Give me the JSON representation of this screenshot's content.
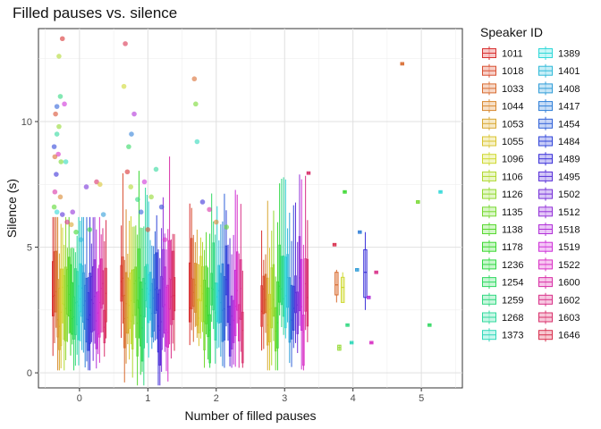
{
  "chart_data": {
    "type": "boxplot",
    "title": "Filled pauses vs. silence",
    "xlabel": "Number of filled pauses",
    "ylabel": "Silence (s)",
    "x_ticks": [
      0,
      1,
      2,
      3,
      4,
      5
    ],
    "y_ticks": [
      0,
      5,
      10
    ],
    "xlim": [
      -0.6,
      5.6
    ],
    "ylim": [
      -0.6,
      13.7
    ],
    "grid": true,
    "legend": {
      "title": "Speaker ID",
      "placement": "right",
      "entries": [
        "1011",
        "1018",
        "1033",
        "1044",
        "1053",
        "1055",
        "1096",
        "1106",
        "1126",
        "1135",
        "1138",
        "1178",
        "1236",
        "1254",
        "1259",
        "1268",
        "1373",
        "1389",
        "1401",
        "1408",
        "1417",
        "1454",
        "1484",
        "1489",
        "1495",
        "1502",
        "1512",
        "1518",
        "1519",
        "1522",
        "1600",
        "1602",
        "1603",
        "1646"
      ]
    },
    "sparse_groups": [
      {
        "x": 3.35,
        "median": 7.95,
        "q1": 7.9,
        "q3": 8.0,
        "lo": 7.9,
        "hi": 8.0,
        "speaker_index": 32
      },
      {
        "x": 3.73,
        "median": 5.1,
        "q1": 5.05,
        "q3": 5.15,
        "lo": 5.05,
        "hi": 5.15,
        "speaker_index": 33
      },
      {
        "x": 3.76,
        "median": 3.5,
        "q1": 3.1,
        "q3": 4.0,
        "lo": 2.8,
        "hi": 4.1,
        "speaker_index": 2
      },
      {
        "x": 3.8,
        "median": 1.0,
        "q1": 0.9,
        "q3": 1.1,
        "lo": 0.9,
        "hi": 1.1,
        "speaker_index": 8
      },
      {
        "x": 3.85,
        "median": 3.4,
        "q1": 2.8,
        "q3": 3.8,
        "lo": 2.8,
        "hi": 4.0,
        "speaker_index": 6
      },
      {
        "x": 3.88,
        "median": 7.2,
        "q1": 7.15,
        "q3": 7.25,
        "lo": 7.15,
        "hi": 7.25,
        "speaker_index": 11
      },
      {
        "x": 3.92,
        "median": 1.9,
        "q1": 1.85,
        "q3": 1.95,
        "lo": 1.85,
        "hi": 1.95,
        "speaker_index": 14
      },
      {
        "x": 3.98,
        "median": 1.2,
        "q1": 1.15,
        "q3": 1.25,
        "lo": 1.15,
        "hi": 1.25,
        "speaker_index": 16
      },
      {
        "x": 4.06,
        "median": 4.1,
        "q1": 4.05,
        "q3": 4.15,
        "lo": 4.05,
        "hi": 4.15,
        "speaker_index": 19
      },
      {
        "x": 4.1,
        "median": 5.6,
        "q1": 5.55,
        "q3": 5.65,
        "lo": 5.55,
        "hi": 5.65,
        "speaker_index": 20
      },
      {
        "x": 4.18,
        "median": 4.0,
        "q1": 3.0,
        "q3": 4.9,
        "lo": 2.5,
        "hi": 5.6,
        "speaker_index": 23
      },
      {
        "x": 4.23,
        "median": 3.0,
        "q1": 2.95,
        "q3": 3.05,
        "lo": 2.95,
        "hi": 3.05,
        "speaker_index": 27
      },
      {
        "x": 4.27,
        "median": 1.2,
        "q1": 1.15,
        "q3": 1.25,
        "lo": 1.15,
        "hi": 1.25,
        "speaker_index": 29
      },
      {
        "x": 4.34,
        "median": 4.0,
        "q1": 3.95,
        "q3": 4.05,
        "lo": 3.95,
        "hi": 4.05,
        "speaker_index": 31
      },
      {
        "x": 4.72,
        "median": 12.3,
        "q1": 12.25,
        "q3": 12.35,
        "lo": 12.25,
        "hi": 12.35,
        "speaker_index": 2
      },
      {
        "x": 4.95,
        "median": 6.8,
        "q1": 6.75,
        "q3": 6.85,
        "lo": 6.75,
        "hi": 6.85,
        "speaker_index": 9
      },
      {
        "x": 5.12,
        "median": 1.9,
        "q1": 1.85,
        "q3": 1.95,
        "lo": 1.85,
        "hi": 1.95,
        "speaker_index": 13
      },
      {
        "x": 5.28,
        "median": 7.2,
        "q1": 7.15,
        "q3": 7.25,
        "lo": 7.15,
        "hi": 7.25,
        "speaker_index": 17
      }
    ],
    "outlier_points": [
      [
        -0.25,
        13.3
      ],
      [
        -0.3,
        12.6
      ],
      [
        -0.28,
        11.0
      ],
      [
        -0.33,
        10.6
      ],
      [
        -0.22,
        10.7
      ],
      [
        -0.35,
        10.3
      ],
      [
        -0.3,
        9.8
      ],
      [
        -0.33,
        9.5
      ],
      [
        -0.37,
        9.0
      ],
      [
        -0.31,
        8.7
      ],
      [
        -0.36,
        8.6
      ],
      [
        -0.27,
        8.4
      ],
      [
        -0.2,
        8.4
      ],
      [
        -0.34,
        7.9
      ],
      [
        -0.36,
        7.2
      ],
      [
        -0.28,
        7.0
      ],
      [
        -0.37,
        6.6
      ],
      [
        -0.33,
        6.4
      ],
      [
        -0.25,
        6.3
      ],
      [
        -0.18,
        6.0
      ],
      [
        -0.12,
        5.9
      ],
      [
        -0.05,
        5.6
      ],
      [
        0.02,
        5.3
      ],
      [
        0.1,
        7.4
      ],
      [
        0.25,
        7.6
      ],
      [
        0.3,
        7.5
      ],
      [
        0.15,
        5.7
      ],
      [
        0.35,
        6.3
      ],
      [
        -0.1,
        6.4
      ],
      [
        0.67,
        13.1
      ],
      [
        0.65,
        11.4
      ],
      [
        0.72,
        9.0
      ],
      [
        0.76,
        9.5
      ],
      [
        0.8,
        10.3
      ],
      [
        0.7,
        8.0
      ],
      [
        0.75,
        7.4
      ],
      [
        0.85,
        6.9
      ],
      [
        0.9,
        6.4
      ],
      [
        0.95,
        7.6
      ],
      [
        1.0,
        5.7
      ],
      [
        1.05,
        7.0
      ],
      [
        1.12,
        8.1
      ],
      [
        1.2,
        6.6
      ],
      [
        1.25,
        5.3
      ],
      [
        1.68,
        11.7
      ],
      [
        1.7,
        10.7
      ],
      [
        1.72,
        9.2
      ],
      [
        1.8,
        6.8
      ],
      [
        1.9,
        6.5
      ],
      [
        2.0,
        6.0
      ],
      [
        2.15,
        5.8
      ]
    ]
  }
}
